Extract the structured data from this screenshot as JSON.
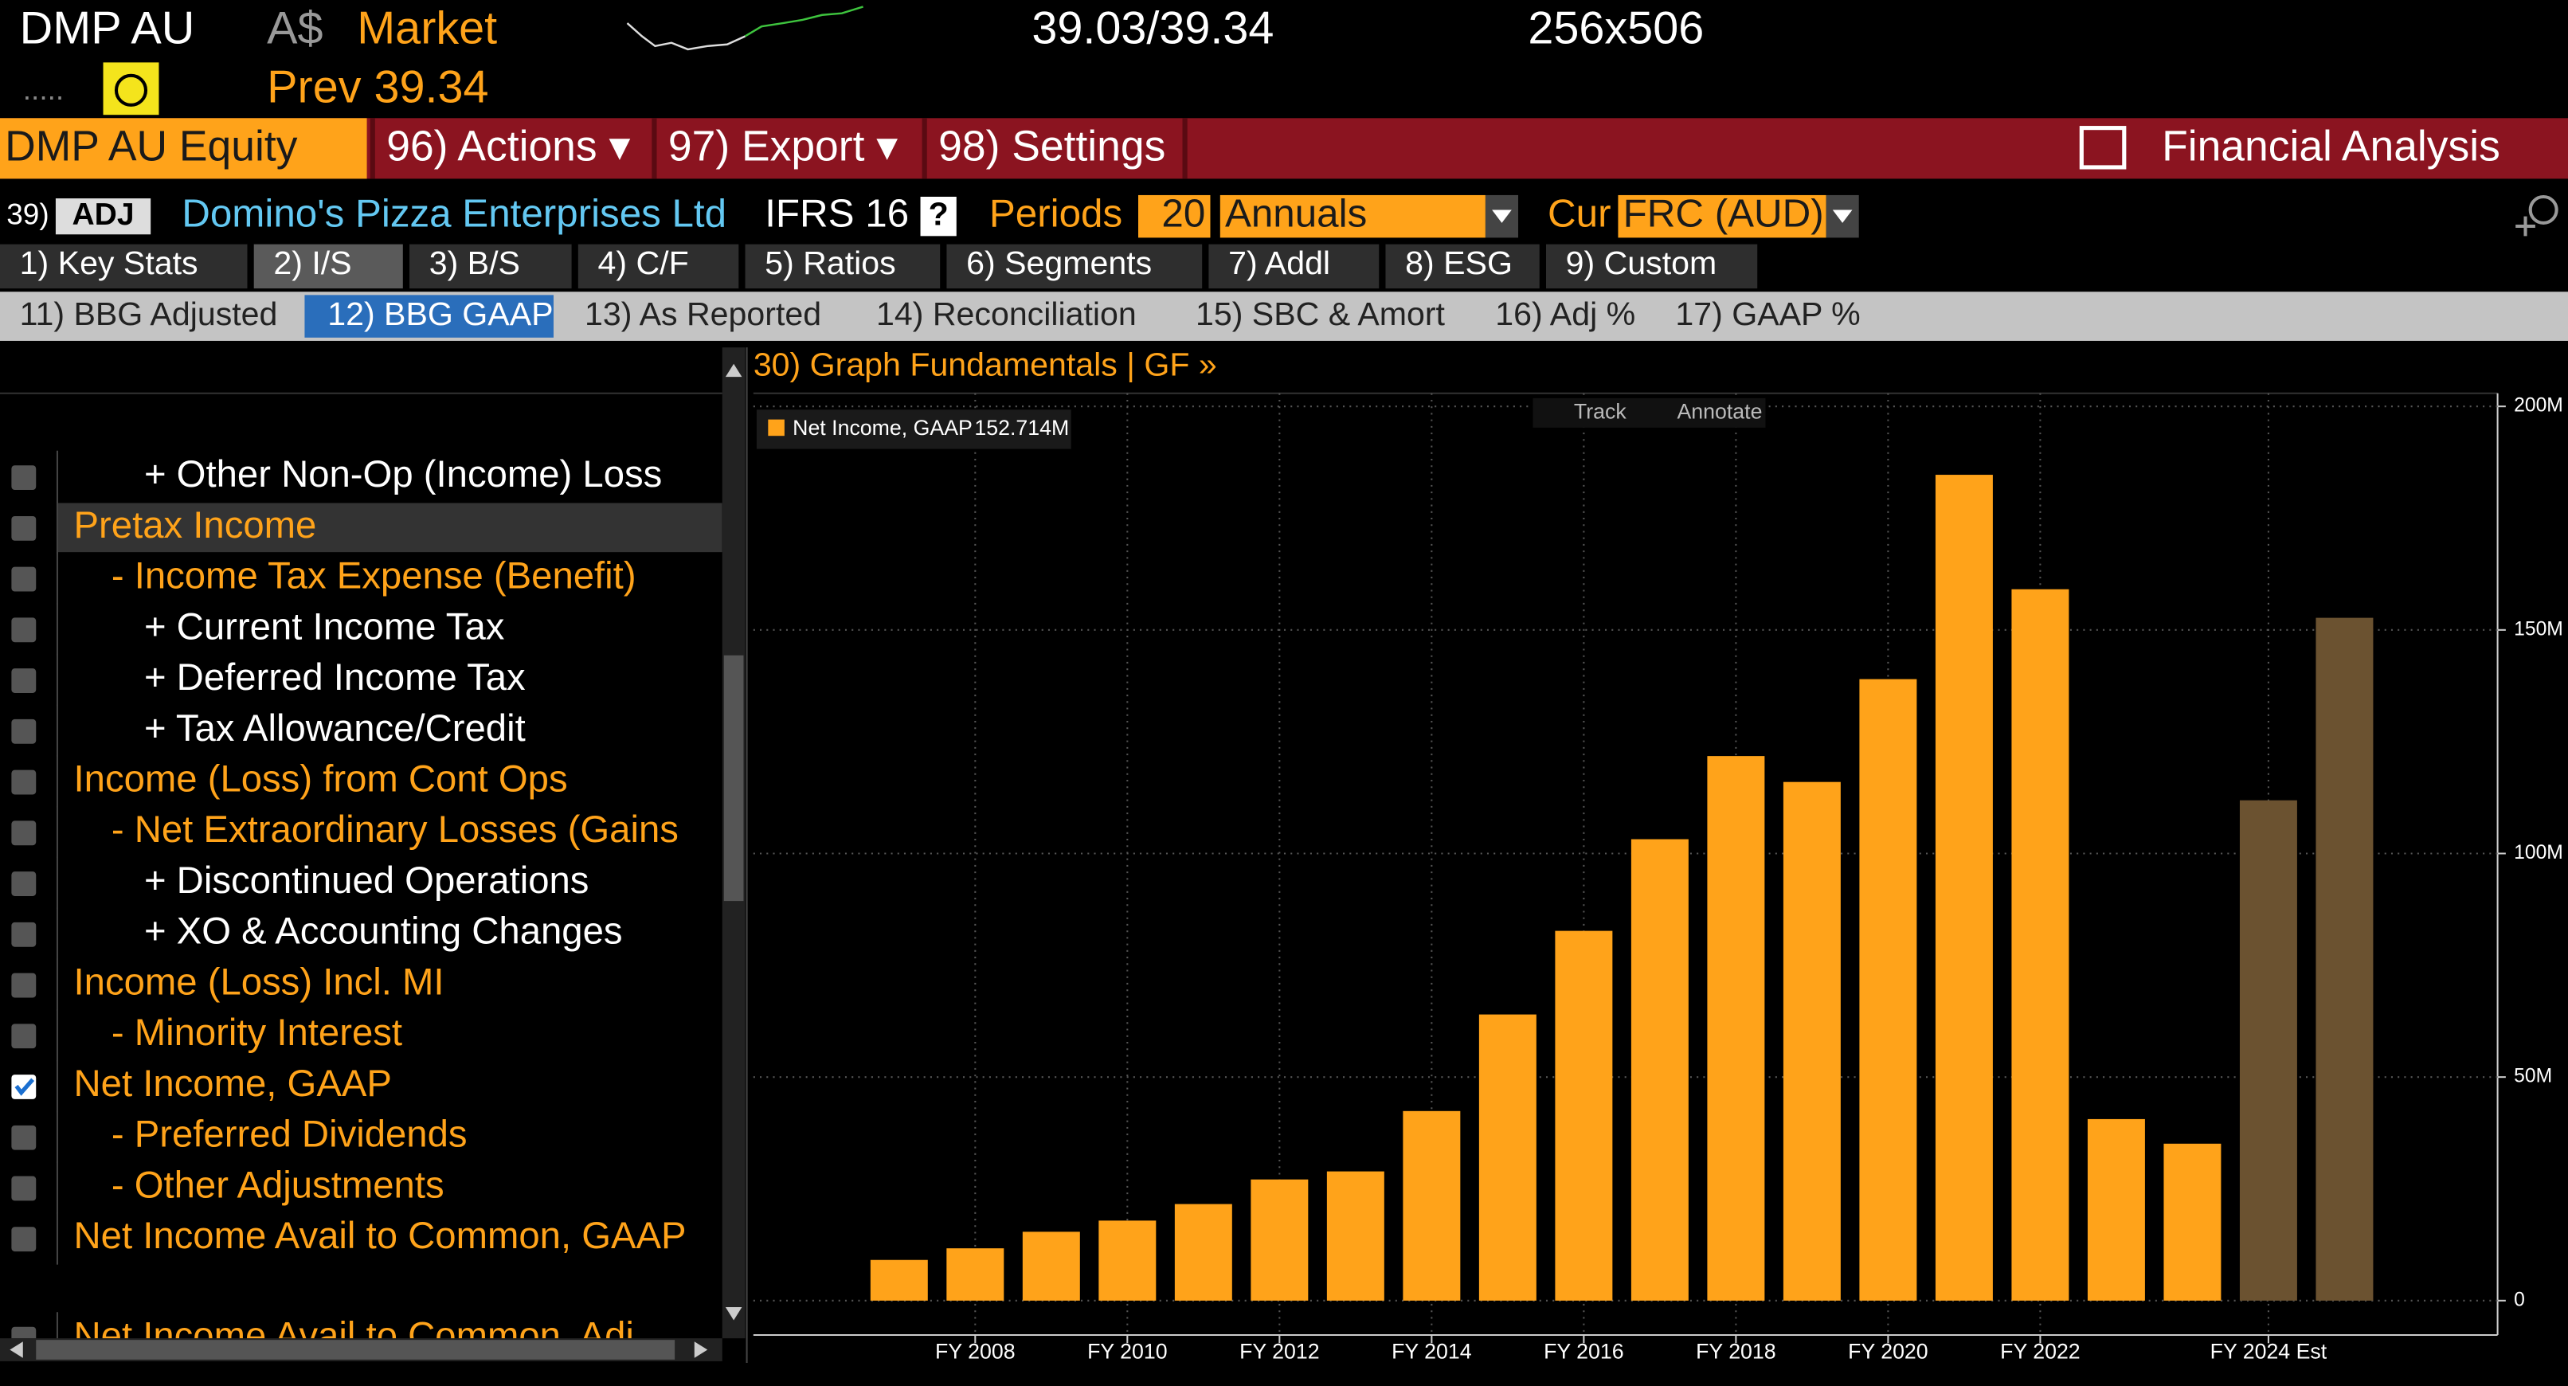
{
  "header": {
    "ticker": "DMP AU",
    "currency": "A$",
    "price_source": "Market",
    "quote": "39.03/39.34",
    "size": "256x506",
    "dots": ".....",
    "prev": "Prev 39.34"
  },
  "menu": {
    "security": "DMP AU Equity",
    "items": [
      "96) Actions ▾",
      "97) Export ▾",
      "98) Settings"
    ],
    "function": "Financial Analysis"
  },
  "toolbar": {
    "num": "39)",
    "adj": "ADJ",
    "company": "Domino's Pizza Enterprises Ltd",
    "standard": "IFRS 16",
    "help": "?",
    "periods_label": "Periods",
    "periods": "20",
    "frequency": "Annuals",
    "cur_label": "Cur",
    "currency": "FRC (AUD)"
  },
  "tabs": {
    "items": [
      "1) Key Stats",
      "2) I/S",
      "3) B/S",
      "4) C/F",
      "5) Ratios",
      "6) Segments",
      "7) Addl",
      "8) ESG",
      "9) Custom"
    ],
    "selected": 1
  },
  "subtabs": {
    "items": [
      "11) BBG Adjusted",
      "12) BBG GAAP",
      "13) As Reported",
      "14) Reconciliation",
      "15) SBC & Amort",
      "16) Adj %",
      "17) GAAP %"
    ],
    "selected": 1
  },
  "line_items": [
    {
      "text": "+ Other Non-Op (Income) Loss",
      "level": 2,
      "color": "#ffffff"
    },
    {
      "text": "Pretax Income",
      "level": 0,
      "color": "#ffa31a",
      "highlighted": true
    },
    {
      "text": "- Income Tax Expense (Benefit)",
      "level": 1,
      "color": "#ffa31a"
    },
    {
      "text": "+ Current Income Tax",
      "level": 2,
      "color": "#ffffff"
    },
    {
      "text": "+ Deferred Income Tax",
      "level": 2,
      "color": "#ffffff"
    },
    {
      "text": "+ Tax Allowance/Credit",
      "level": 2,
      "color": "#ffffff"
    },
    {
      "text": "Income (Loss) from Cont Ops",
      "level": 0,
      "color": "#ffa31a"
    },
    {
      "text": "- Net Extraordinary Losses (Gains",
      "level": 1,
      "color": "#ffa31a"
    },
    {
      "text": "+ Discontinued Operations",
      "level": 2,
      "color": "#ffffff"
    },
    {
      "text": "+ XO & Accounting Changes",
      "level": 2,
      "color": "#ffffff"
    },
    {
      "text": "Income (Loss) Incl. MI",
      "level": 0,
      "color": "#ffa31a"
    },
    {
      "text": "- Minority Interest",
      "level": 1,
      "color": "#ffa31a"
    },
    {
      "text": "Net Income, GAAP",
      "level": 0,
      "color": "#ffa31a",
      "checked": true
    },
    {
      "text": "- Preferred Dividends",
      "level": 1,
      "color": "#ffa31a"
    },
    {
      "text": "- Other Adjustments",
      "level": 1,
      "color": "#ffa31a"
    },
    {
      "text": "Net Income Avail to Common, GAAP",
      "level": 0,
      "color": "#ffa31a"
    },
    {
      "text": "Net Income Avail to Common, Adj",
      "level": 0,
      "color": "#ffa31a"
    }
  ],
  "chart_data": {
    "type": "bar",
    "title": "30) Graph Fundamentals | GF »",
    "tools": [
      "Track",
      "Annotate"
    ],
    "categories": [
      null,
      "FY 2008",
      null,
      "FY 2010",
      null,
      "FY 2012",
      null,
      "FY 2014",
      null,
      "FY 2016",
      null,
      "FY 2018",
      null,
      "FY 2020",
      null,
      "FY 2022",
      null,
      null,
      "FY 2024 Est",
      null
    ],
    "series": [
      {
        "name": "Net Income, GAAP",
        "color": "#ffa31a",
        "values": [
          9100000,
          11700000,
          15400000,
          17900000,
          21600000,
          27100000,
          28900000,
          42400000,
          64000000,
          82700000,
          103200000,
          121800000,
          116000000,
          139000000,
          184700000,
          159100000,
          40600000,
          35100000,
          111900000,
          152714000
        ]
      }
    ],
    "bar_colors": [
      "#ffa31a",
      "#ffa31a",
      "#ffa31a",
      "#ffa31a",
      "#ffa31a",
      "#ffa31a",
      "#ffa31a",
      "#ffa31a",
      "#ffa31a",
      "#ffa31a",
      "#ffa31a",
      "#ffa31a",
      "#ffa31a",
      "#ffa31a",
      "#ffa31a",
      "#ffa31a",
      "#ffa31a",
      "#ffa31a",
      "#6b5230",
      "#6b5230"
    ],
    "legend_value": "152.714M",
    "ylim": [
      0,
      200000000
    ],
    "yticks": [
      {
        "value": 0,
        "label": "0"
      },
      {
        "value": 50000000,
        "label": "50M"
      },
      {
        "value": 100000000,
        "label": "100M"
      },
      {
        "value": 150000000,
        "label": "150M"
      },
      {
        "value": 200000000,
        "label": "200M"
      }
    ],
    "grid": true
  }
}
